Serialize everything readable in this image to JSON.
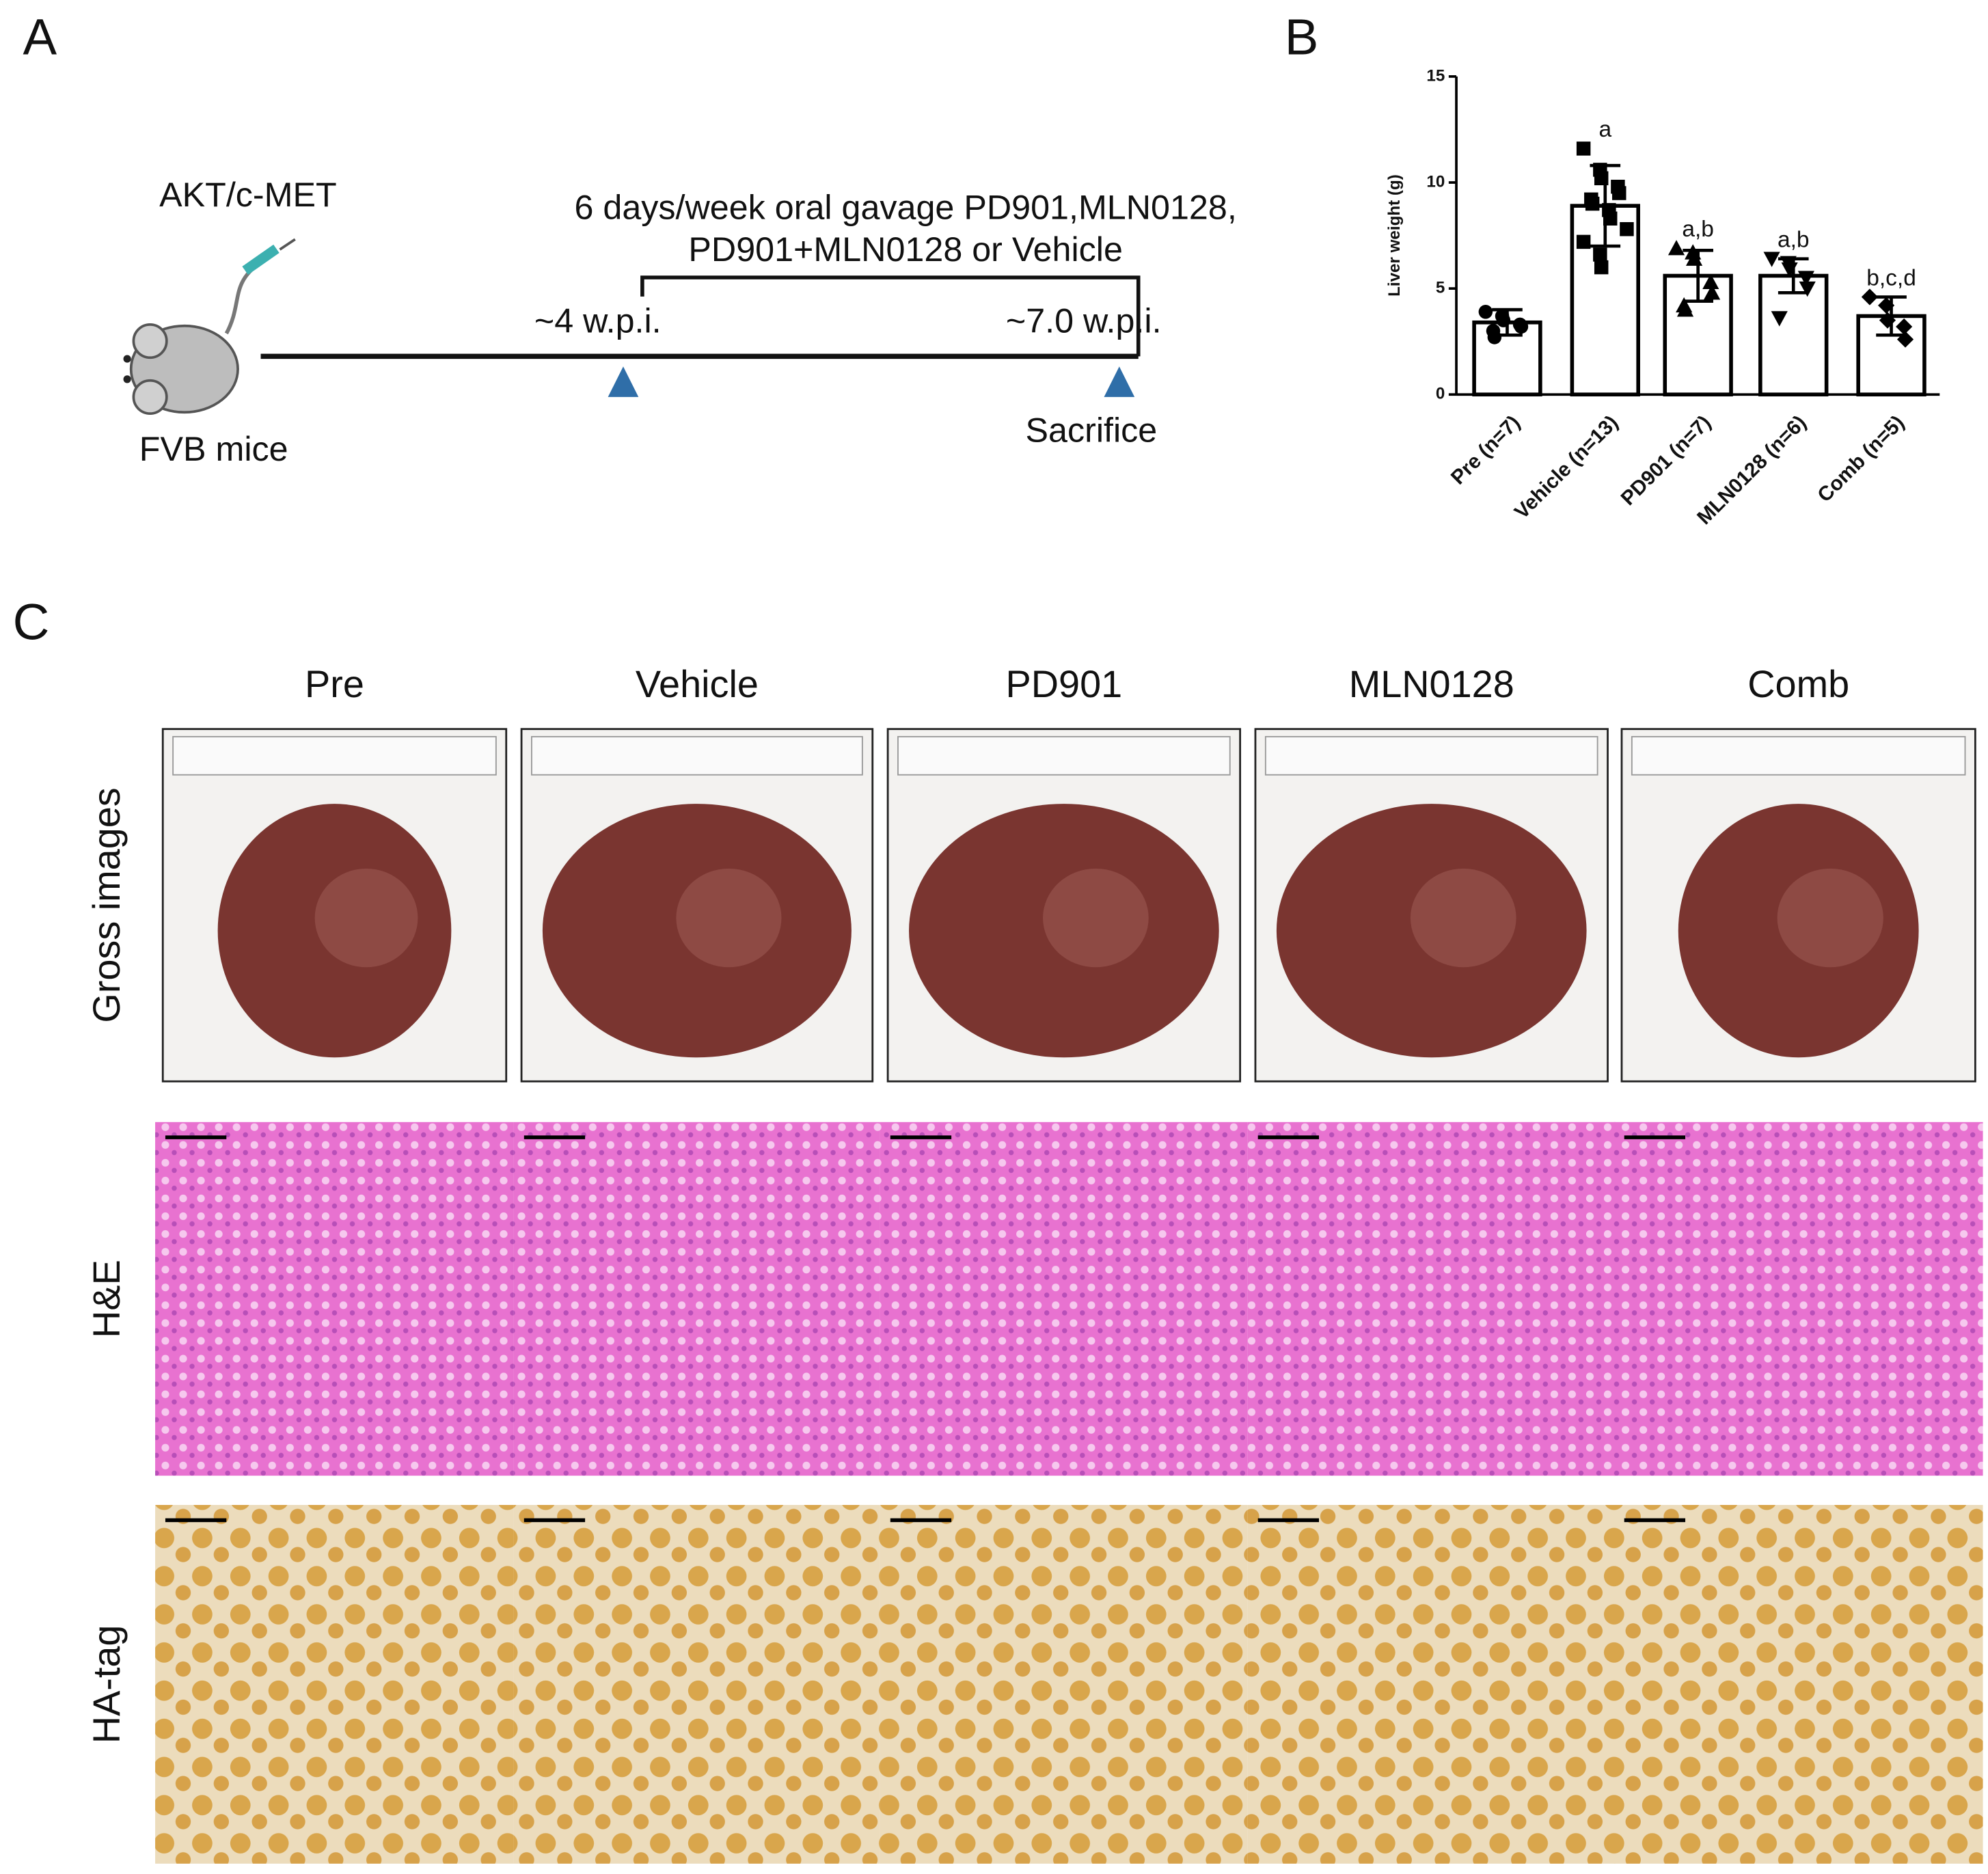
{
  "panel_a": {
    "label": "A",
    "model": "AKT/c-MET",
    "strain": "FVB mice",
    "treatment_line1": "6 days/week oral gavage PD901,MLN0128,",
    "treatment_line2": "PD901+MLN0128 or Vehicle",
    "start": "~4 w.p.i.",
    "end": "~7.0 w.p.i.",
    "endpoint": "Sacrifice"
  },
  "chart_data": {
    "type": "bar",
    "label": "B",
    "ylabel": "Liver weight (g)",
    "categories": [
      "Pre (n=7)",
      "Vehicle (n=13)",
      "PD901 (n=7)",
      "MLN0128 (n=6)",
      "Comb (n=5)"
    ],
    "values": [
      3.4,
      8.9,
      5.6,
      5.6,
      3.7
    ],
    "errors": [
      0.6,
      1.9,
      1.2,
      0.8,
      0.9
    ],
    "points": [
      [
        3.9,
        3.7,
        3.5,
        3.3,
        3.2,
        3.0,
        2.7
      ],
      [
        11.6,
        10.6,
        10.2,
        9.8,
        9.5,
        9.2,
        9.0,
        8.7,
        8.3,
        7.8,
        7.2,
        6.6,
        6.0
      ],
      [
        6.9,
        6.7,
        6.4,
        5.3,
        4.8,
        4.2,
        4.0
      ],
      [
        6.4,
        6.2,
        5.9,
        5.5,
        5.0,
        3.6
      ],
      [
        4.6,
        4.2,
        3.5,
        3.2,
        2.6
      ]
    ],
    "markers": [
      "circle",
      "square",
      "triangle",
      "triangle-down",
      "diamond"
    ],
    "annotations": [
      null,
      "a",
      "a,b",
      "a,b",
      "b,c,d"
    ],
    "ylim": [
      0,
      15
    ],
    "yticks": [
      0,
      5,
      10,
      15
    ],
    "color": "#000000"
  },
  "panel_c": {
    "label": "C",
    "columns": [
      "Pre",
      "Vehicle",
      "PD901",
      "MLN0128",
      "Comb"
    ],
    "rows": [
      "Gross images",
      "H&E",
      "HA-tag"
    ]
  }
}
